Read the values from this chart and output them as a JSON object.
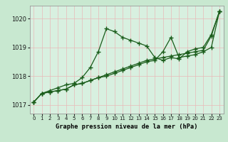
{
  "background_color": "#c8e8d0",
  "grid_color": "#aed4b8",
  "plot_bg": "#d8f0e0",
  "line_color": "#1a5c1a",
  "title": "Graphe pression niveau de la mer (hPa)",
  "ylim": [
    1016.7,
    1020.45
  ],
  "xlim": [
    -0.5,
    23.5
  ],
  "yticks": [
    1017,
    1018,
    1019,
    1020
  ],
  "xticks": [
    0,
    1,
    2,
    3,
    4,
    5,
    6,
    7,
    8,
    9,
    10,
    11,
    12,
    13,
    14,
    15,
    16,
    17,
    18,
    19,
    20,
    21,
    22,
    23
  ],
  "series": [
    [
      1017.1,
      1017.4,
      1017.5,
      1017.6,
      1017.7,
      1017.75,
      1017.95,
      1018.3,
      1018.85,
      1019.65,
      1019.55,
      1019.35,
      1019.25,
      1019.15,
      1019.05,
      1018.65,
      1018.55,
      1018.65,
      1018.6,
      1018.85,
      1018.95,
      1019.0,
      1019.45,
      1020.25
    ],
    [
      1017.1,
      1017.4,
      1017.45,
      1017.5,
      1017.55,
      1017.7,
      1017.75,
      1017.85,
      1017.95,
      1018.0,
      1018.1,
      1018.2,
      1018.3,
      1018.4,
      1018.5,
      1018.55,
      1018.85,
      1019.35,
      1018.65,
      1018.7,
      1018.75,
      1018.85,
      1019.0,
      1020.25
    ],
    [
      1017.1,
      1017.4,
      1017.45,
      1017.5,
      1017.55,
      1017.7,
      1017.75,
      1017.85,
      1017.95,
      1018.05,
      1018.15,
      1018.25,
      1018.35,
      1018.45,
      1018.55,
      1018.6,
      1018.65,
      1018.7,
      1018.75,
      1018.8,
      1018.85,
      1018.9,
      1019.4,
      1020.25
    ]
  ]
}
